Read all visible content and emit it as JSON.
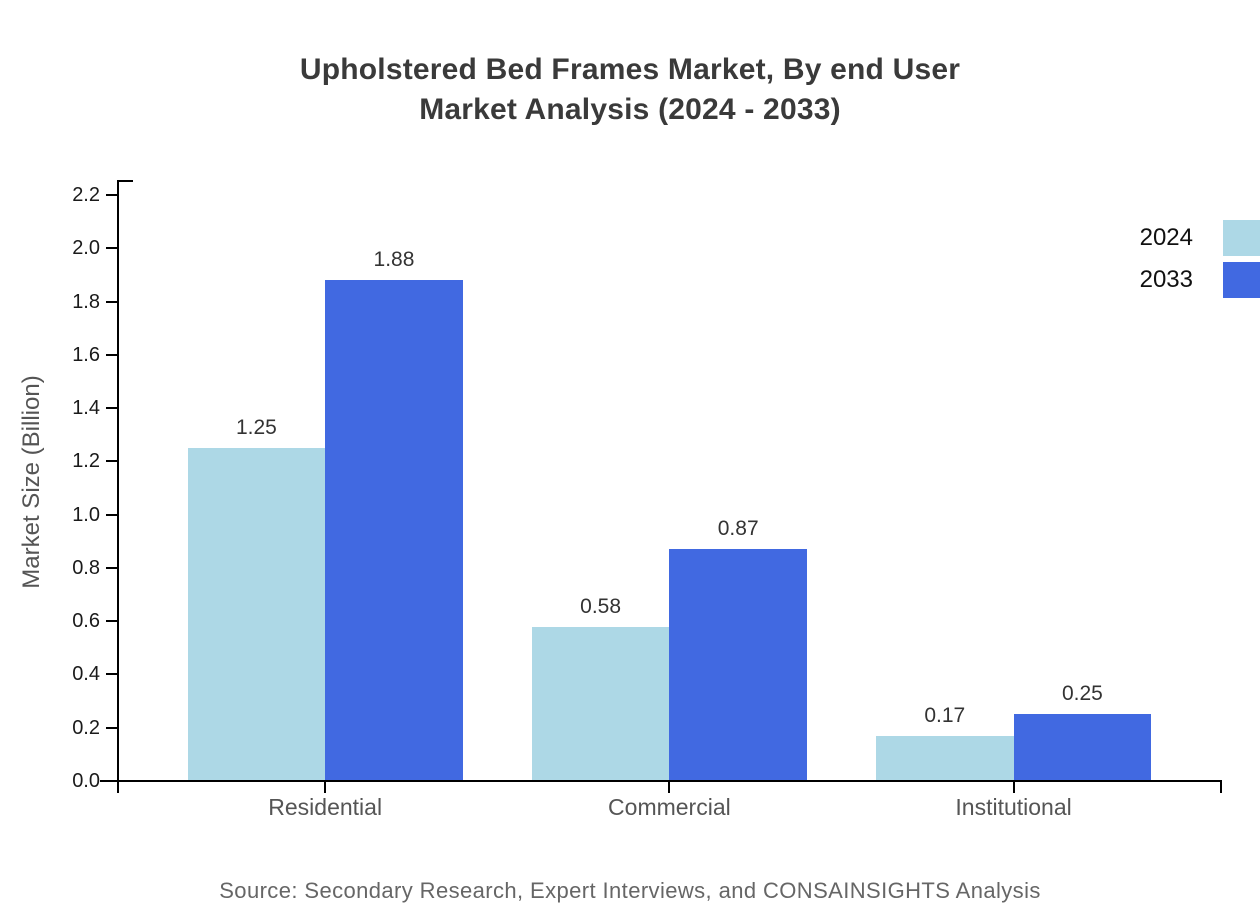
{
  "title": {
    "line1": "Upholstered Bed Frames Market, By end User",
    "line2": "Market Analysis (2024 - 2033)"
  },
  "source": "Source: Secondary Research, Expert Interviews, and CONSAINSIGHTS Analysis",
  "legend": {
    "items": [
      {
        "label": "2024",
        "color": "#ADD8E6"
      },
      {
        "label": "2033",
        "color": "#4169E1"
      }
    ]
  },
  "chart_data": {
    "type": "bar",
    "title": "Upholstered Bed Frames Market, By end User Market Analysis (2024 - 2033)",
    "categories": [
      "Residential",
      "Commercial",
      "Institutional"
    ],
    "series": [
      {
        "name": "2024",
        "color": "#ADD8E6",
        "values": [
          1.25,
          0.58,
          0.17
        ],
        "labels": [
          "1.25",
          "0.58",
          "0.17"
        ]
      },
      {
        "name": "2033",
        "color": "#4169E1",
        "values": [
          1.88,
          0.87,
          0.25
        ],
        "labels": [
          "1.88",
          "0.87",
          "0.25"
        ]
      }
    ],
    "xlabel": "",
    "ylabel": "Market Size (Billion)",
    "ylim": [
      0.0,
      2.2
    ],
    "ytick_step": 0.2,
    "ytick_labels": [
      "0.0",
      "0.2",
      "0.4",
      "0.6",
      "0.8",
      "1.0",
      "1.2",
      "1.4",
      "1.6",
      "1.8",
      "2.0",
      "2.2"
    ],
    "grid": false,
    "legend_position": "top-right",
    "axis_color": "#000000"
  }
}
